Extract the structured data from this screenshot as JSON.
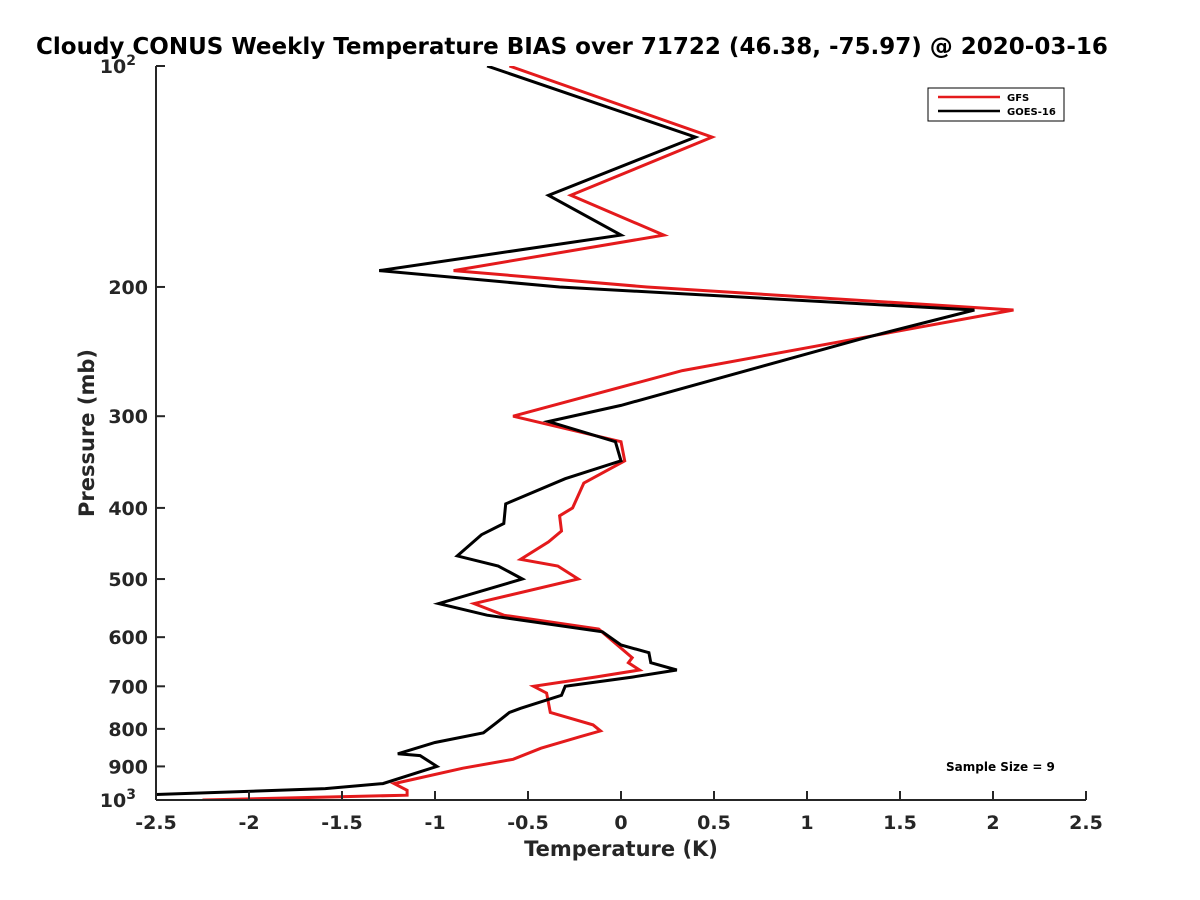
{
  "chart_data": {
    "type": "line",
    "title": "Cloudy CONUS Weekly Temperature BIAS over 71722 (46.38, -75.97) @ 2020-03-16",
    "xlabel": "Temperature (K)",
    "ylabel": "Pressure (mb)",
    "xlim": [
      -2.5,
      2.5
    ],
    "ylim": [
      100,
      1000
    ],
    "y_scale": "log",
    "y_reversed": true,
    "grid": false,
    "legend_position": "top-right",
    "x_ticks": [
      {
        "value": -2.5,
        "label": "-2.5"
      },
      {
        "value": -2,
        "label": "-2"
      },
      {
        "value": -1.5,
        "label": "-1.5"
      },
      {
        "value": -1,
        "label": "-1"
      },
      {
        "value": -0.5,
        "label": "-0.5"
      },
      {
        "value": 0,
        "label": "0"
      },
      {
        "value": 0.5,
        "label": "0.5"
      },
      {
        "value": 1,
        "label": "1"
      },
      {
        "value": 1.5,
        "label": "1.5"
      },
      {
        "value": 2,
        "label": "2"
      },
      {
        "value": 2.5,
        "label": "2.5"
      }
    ],
    "y_ticks": [
      {
        "value": 100,
        "label": "10",
        "sup": "2"
      },
      {
        "value": 200,
        "label": "200",
        "sup": ""
      },
      {
        "value": 300,
        "label": "300",
        "sup": ""
      },
      {
        "value": 400,
        "label": "400",
        "sup": ""
      },
      {
        "value": 500,
        "label": "500",
        "sup": ""
      },
      {
        "value": 600,
        "label": "600",
        "sup": ""
      },
      {
        "value": 700,
        "label": "700",
        "sup": ""
      },
      {
        "value": 800,
        "label": "800",
        "sup": ""
      },
      {
        "value": 900,
        "label": "900",
        "sup": ""
      },
      {
        "value": 1000,
        "label": "10",
        "sup": "3"
      }
    ],
    "series": [
      {
        "name": "GFS",
        "color": "#e41a1c",
        "points": [
          {
            "x": -0.6,
            "y": 100
          },
          {
            "x": 0.49,
            "y": 125
          },
          {
            "x": -0.27,
            "y": 150
          },
          {
            "x": 0.23,
            "y": 170
          },
          {
            "x": -0.9,
            "y": 190
          },
          {
            "x": 0.14,
            "y": 200
          },
          {
            "x": 2.11,
            "y": 215
          },
          {
            "x": 0.33,
            "y": 260
          },
          {
            "x": -0.58,
            "y": 300
          },
          {
            "x": 0.0,
            "y": 325
          },
          {
            "x": 0.02,
            "y": 345
          },
          {
            "x": -0.2,
            "y": 370
          },
          {
            "x": -0.26,
            "y": 400
          },
          {
            "x": -0.33,
            "y": 410
          },
          {
            "x": -0.32,
            "y": 430
          },
          {
            "x": -0.39,
            "y": 445
          },
          {
            "x": -0.54,
            "y": 470
          },
          {
            "x": -0.34,
            "y": 480
          },
          {
            "x": -0.23,
            "y": 500
          },
          {
            "x": -0.79,
            "y": 540
          },
          {
            "x": -0.63,
            "y": 560
          },
          {
            "x": -0.12,
            "y": 585
          },
          {
            "x": 0.06,
            "y": 640
          },
          {
            "x": 0.04,
            "y": 650
          },
          {
            "x": 0.1,
            "y": 665
          },
          {
            "x": -0.14,
            "y": 680
          },
          {
            "x": -0.47,
            "y": 700
          },
          {
            "x": -0.4,
            "y": 715
          },
          {
            "x": -0.38,
            "y": 760
          },
          {
            "x": -0.15,
            "y": 790
          },
          {
            "x": -0.11,
            "y": 805
          },
          {
            "x": -0.22,
            "y": 820
          },
          {
            "x": -0.43,
            "y": 850
          },
          {
            "x": -0.58,
            "y": 880
          },
          {
            "x": -0.85,
            "y": 905
          },
          {
            "x": -1.1,
            "y": 935
          },
          {
            "x": -1.22,
            "y": 950
          },
          {
            "x": -1.15,
            "y": 970
          },
          {
            "x": -1.15,
            "y": 985
          },
          {
            "x": -2.25,
            "y": 1000
          }
        ]
      },
      {
        "name": "GOES-16",
        "color": "#000000",
        "points": [
          {
            "x": -0.72,
            "y": 100
          },
          {
            "x": 0.4,
            "y": 125
          },
          {
            "x": -0.39,
            "y": 150
          },
          {
            "x": 0.0,
            "y": 170
          },
          {
            "x": -1.3,
            "y": 190
          },
          {
            "x": -0.33,
            "y": 200
          },
          {
            "x": 1.9,
            "y": 215
          },
          {
            "x": 1.3,
            "y": 235
          },
          {
            "x": 0.0,
            "y": 290
          },
          {
            "x": -0.39,
            "y": 305
          },
          {
            "x": -0.03,
            "y": 325
          },
          {
            "x": 0.0,
            "y": 345
          },
          {
            "x": -0.3,
            "y": 365
          },
          {
            "x": -0.62,
            "y": 395
          },
          {
            "x": -0.63,
            "y": 420
          },
          {
            "x": -0.75,
            "y": 435
          },
          {
            "x": -0.88,
            "y": 465
          },
          {
            "x": -0.66,
            "y": 480
          },
          {
            "x": -0.53,
            "y": 500
          },
          {
            "x": -0.98,
            "y": 540
          },
          {
            "x": -0.72,
            "y": 560
          },
          {
            "x": -0.1,
            "y": 590
          },
          {
            "x": 0.0,
            "y": 615
          },
          {
            "x": 0.15,
            "y": 630
          },
          {
            "x": 0.16,
            "y": 650
          },
          {
            "x": 0.3,
            "y": 665
          },
          {
            "x": 0.06,
            "y": 680
          },
          {
            "x": -0.3,
            "y": 700
          },
          {
            "x": -0.32,
            "y": 720
          },
          {
            "x": -0.54,
            "y": 750
          },
          {
            "x": -0.6,
            "y": 760
          },
          {
            "x": -0.67,
            "y": 785
          },
          {
            "x": -0.74,
            "y": 810
          },
          {
            "x": -1.0,
            "y": 835
          },
          {
            "x": -1.2,
            "y": 865
          },
          {
            "x": -1.08,
            "y": 870
          },
          {
            "x": -0.99,
            "y": 900
          },
          {
            "x": -1.28,
            "y": 950
          },
          {
            "x": -1.59,
            "y": 965
          },
          {
            "x": -2.6,
            "y": 985
          }
        ]
      }
    ],
    "annotation": "Sample Size = 9"
  }
}
